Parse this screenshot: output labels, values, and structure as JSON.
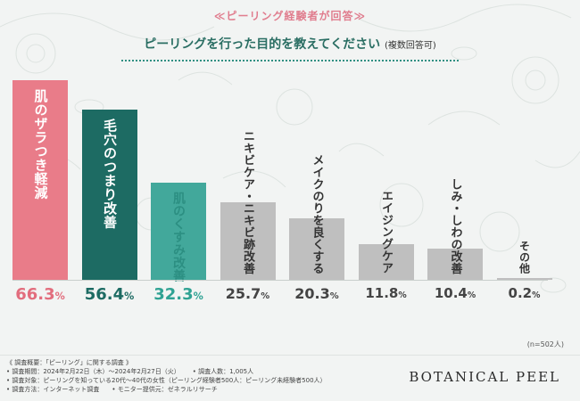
{
  "header": {
    "kicker": "≪ピーリング経験者が回答≫",
    "title": "ピーリングを行った目的を教えてください",
    "title_note": "(複数回答可)"
  },
  "chart_data": {
    "type": "bar",
    "categories": [
      "肌のザラつき軽減",
      "毛穴のつまり改善",
      "肌のくすみ改善",
      "ニキビケア・ニキビ跡改善",
      "メイクのりを良くする",
      "エイジングケア",
      "しみ・しわの改善",
      "その他"
    ],
    "values": [
      66.3,
      56.4,
      32.3,
      25.7,
      20.3,
      11.8,
      10.4,
      0.2
    ],
    "value_labels": [
      "66.3",
      "56.4",
      "32.3",
      "25.7",
      "20.3",
      "11.8",
      "10.4",
      "0.2"
    ],
    "unit": "%",
    "ylim": [
      0,
      100
    ],
    "colors": [
      "#e97c89",
      "#1d6b63",
      "#42a89b",
      "#bfbfbf",
      "#bfbfbf",
      "#bfbfbf",
      "#bfbfbf",
      "#bfbfbf"
    ],
    "label_colors": [
      "#ffffff",
      "#ffffff",
      "#2c8f82",
      "#333333",
      "#333333",
      "#333333",
      "#333333",
      "#333333"
    ],
    "value_colors": [
      "#e26d7d",
      "#1d6b63",
      "#2fa293",
      "#444444",
      "#444444",
      "#444444",
      "#444444",
      "#444444"
    ],
    "sample_size": "(n=502人)"
  },
  "footnotes": {
    "line1": "《 調査概要：「ピーリング」に関する調査 》",
    "period": "• 調査期間：2024年2月22日（木）～2024年2月27日（火）",
    "count": "• 調査人数：1,005人",
    "target": "• 調査対象：ピーリングを知っている20代～40代の女性（ピーリング経験者500人：ピーリング未経験者500人）",
    "method": "• 調査方法：インターネット調査",
    "provider": "• モニター提供元：ゼネラルリサーチ"
  },
  "brand": {
    "logo_text": "BOTANICAL PEEL"
  }
}
